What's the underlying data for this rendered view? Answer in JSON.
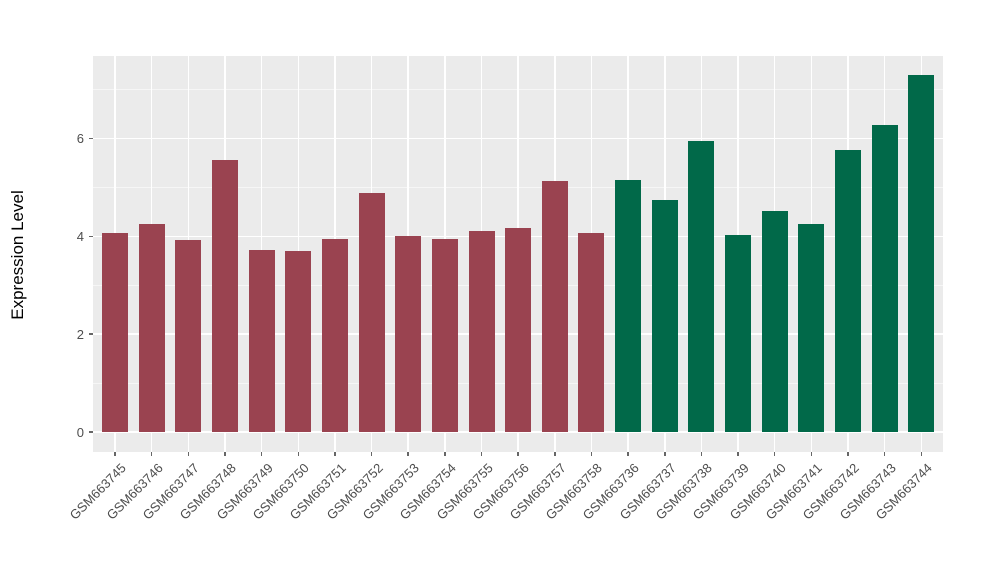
{
  "chart_data": {
    "type": "bar",
    "title": "",
    "xlabel": "",
    "ylabel": "Expression Level",
    "ylim": [
      0,
      7.7
    ],
    "yticks": [
      0,
      2,
      4,
      6
    ],
    "yminor": [
      1,
      3,
      5,
      7
    ],
    "grid": "on",
    "legend": "none",
    "panel_background": "#EBEBEB",
    "categories": [
      "GSM663745",
      "GSM663746",
      "GSM663747",
      "GSM663748",
      "GSM663749",
      "GSM663750",
      "GSM663751",
      "GSM663752",
      "GSM663753",
      "GSM663754",
      "GSM663755",
      "GSM663756",
      "GSM663757",
      "GSM663758",
      "GSM663736",
      "GSM663737",
      "GSM663738",
      "GSM663739",
      "GSM663740",
      "GSM663741",
      "GSM663742",
      "GSM663743",
      "GSM663744"
    ],
    "values": [
      4.07,
      4.26,
      3.92,
      5.56,
      3.72,
      3.7,
      3.94,
      4.88,
      4.01,
      3.94,
      4.11,
      4.18,
      5.13,
      4.07,
      5.15,
      4.74,
      5.95,
      4.03,
      4.51,
      4.26,
      5.76,
      6.27,
      7.31
    ],
    "bar_groups": [
      "maroon",
      "maroon",
      "maroon",
      "maroon",
      "maroon",
      "maroon",
      "maroon",
      "maroon",
      "maroon",
      "maroon",
      "maroon",
      "maroon",
      "maroon",
      "maroon",
      "green",
      "green",
      "green",
      "green",
      "green",
      "green",
      "green",
      "green",
      "green"
    ],
    "group_colors": {
      "maroon": "#9A4350",
      "green": "#016949"
    }
  }
}
